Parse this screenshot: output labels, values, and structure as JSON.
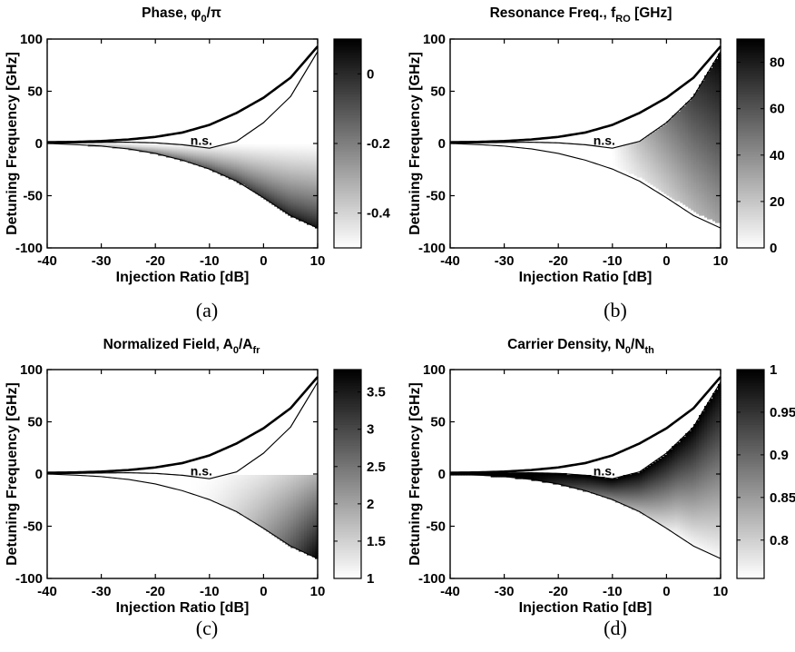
{
  "chart_data": [
    {
      "type": "heatmap",
      "panel": "(a)",
      "title": {
        "main": "Phase, φ",
        "sub": "0",
        "rest": "/π",
        "sub2": "",
        "rest2": ""
      },
      "xlabel": "Injection Ratio [dB]",
      "ylabel": "Detuning Frequency [GHz]",
      "xlim": [
        -40,
        10
      ],
      "ylim": [
        -100,
        100
      ],
      "xticks": [
        "-40",
        "-30",
        "-20",
        "-10",
        "0",
        "10"
      ],
      "yticks": [
        "100",
        "50",
        "0",
        "-50",
        "-100"
      ],
      "colorbar": {
        "range": [
          -0.5,
          0.1
        ],
        "ticks": [
          "0",
          "-0.2",
          "-0.4"
        ],
        "tick_values": [
          0,
          -0.2,
          -0.4
        ],
        "colormap": "gray (black=high)"
      },
      "shaded_field": "phase",
      "annotation": "n.s."
    },
    {
      "type": "heatmap",
      "panel": "(b)",
      "title": {
        "main": "Resonance Freq., f",
        "sub": "RO",
        "rest": " [GHz]",
        "sub2": "",
        "rest2": ""
      },
      "xlabel": "Injection Ratio [dB]",
      "ylabel": "Detuning Frequency [GHz]",
      "xlim": [
        -40,
        10
      ],
      "ylim": [
        -100,
        100
      ],
      "xticks": [
        "-40",
        "-30",
        "-20",
        "-10",
        "0",
        "10"
      ],
      "yticks": [
        "100",
        "50",
        "0",
        "-50",
        "-100"
      ],
      "colorbar": {
        "range": [
          0,
          90
        ],
        "ticks": [
          "80",
          "60",
          "40",
          "20",
          "0"
        ],
        "tick_values": [
          80,
          60,
          40,
          20,
          0
        ],
        "colormap": "gray (black=high)"
      },
      "shaded_field": "resonance",
      "annotation": "n.s."
    },
    {
      "type": "heatmap",
      "panel": "(c)",
      "title": {
        "main": "Normalized Field, A",
        "sub": "0",
        "rest": "/A",
        "sub2": "fr",
        "rest2": ""
      },
      "xlabel": "Injection Ratio [dB]",
      "ylabel": "Detuning Frequency [GHz]",
      "xlim": [
        -40,
        10
      ],
      "ylim": [
        -100,
        100
      ],
      "xticks": [
        "-40",
        "-30",
        "-20",
        "-10",
        "0",
        "10"
      ],
      "yticks": [
        "100",
        "50",
        "0",
        "-50",
        "-100"
      ],
      "colorbar": {
        "range": [
          1,
          3.8
        ],
        "ticks": [
          "3.5",
          "3",
          "2.5",
          "2",
          "1.5",
          "1"
        ],
        "tick_values": [
          3.5,
          3,
          2.5,
          2,
          1.5,
          1
        ],
        "colormap": "gray (black=high)"
      },
      "shaded_field": "field",
      "annotation": "n.s."
    },
    {
      "type": "heatmap",
      "panel": "(d)",
      "title": {
        "main": "Carrier Density, N",
        "sub": "0",
        "rest": "/N",
        "sub2": "th",
        "rest2": ""
      },
      "xlabel": "Injection Ratio [dB]",
      "ylabel": "Detuning Frequency [GHz]",
      "xlim": [
        -40,
        10
      ],
      "ylim": [
        -100,
        100
      ],
      "xticks": [
        "-40",
        "-30",
        "-20",
        "-10",
        "0",
        "10"
      ],
      "yticks": [
        "100",
        "50",
        "0",
        "-50",
        "-100"
      ],
      "colorbar": {
        "range": [
          0.755,
          1.0
        ],
        "ticks": [
          "1",
          "0.95",
          "0.9",
          "0.85",
          "0.8"
        ],
        "tick_values": [
          1,
          0.95,
          0.9,
          0.85,
          0.8
        ],
        "colormap": "gray (black=high)"
      },
      "shaded_field": "carrier",
      "annotation": "n.s."
    }
  ],
  "boundary_curves": {
    "x": [
      -40,
      -35,
      -30,
      -25,
      -20,
      -15,
      -10,
      -5,
      0,
      5,
      10
    ],
    "upper": [
      1.2,
      1.5,
      2.3,
      3.8,
      6.3,
      10.5,
      17.8,
      29.2,
      43.8,
      63.0,
      93.0
    ],
    "inner": [
      0.4,
      0.6,
      1.0,
      1.2,
      0.6,
      -1.2,
      -4.5,
      2.0,
      20.0,
      45.0,
      88.0
    ],
    "lower": [
      0.0,
      -1.0,
      -2.5,
      -5.2,
      -9.5,
      -16.0,
      -24.5,
      -36.0,
      -52.0,
      -69.0,
      -81.0
    ]
  }
}
